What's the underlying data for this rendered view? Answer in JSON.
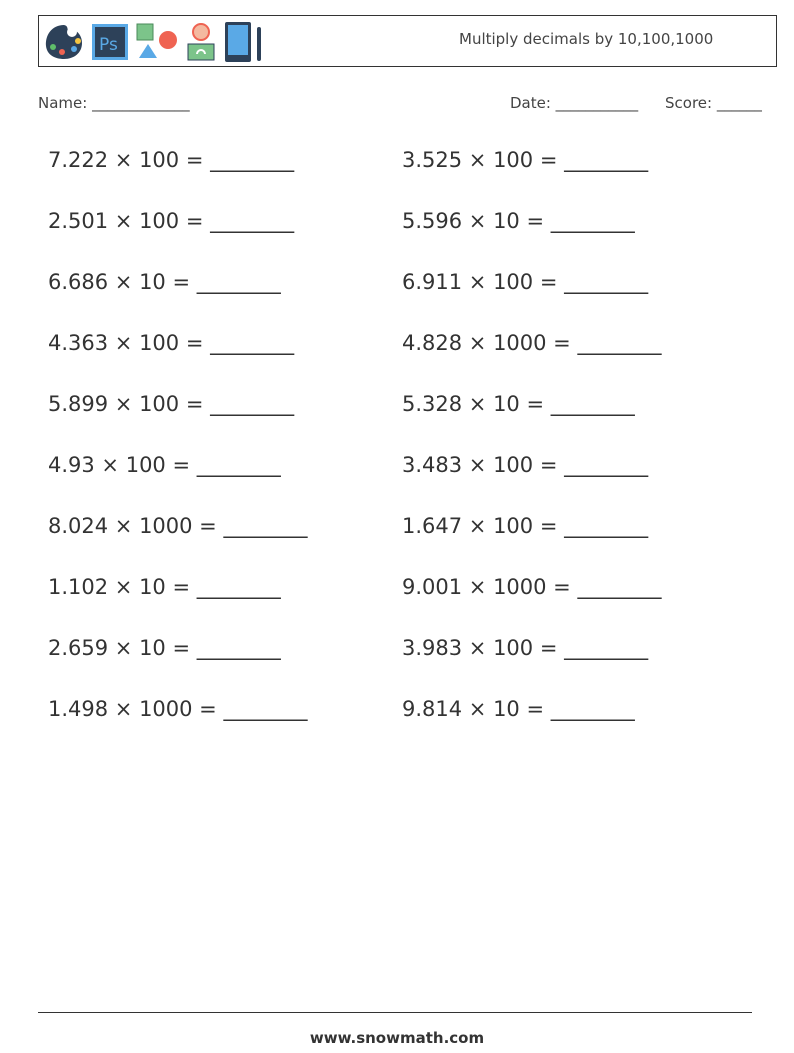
{
  "header": {
    "title": "Multiply decimals by 10,100,1000",
    "icons": [
      "palette-icon",
      "photoshop-icon",
      "shapes-icon",
      "person-laptop-icon",
      "tablet-pen-icon"
    ]
  },
  "fields": {
    "name": "Name: _____________",
    "date": "Date: ___________",
    "score": "Score: ______"
  },
  "problems": [
    "7.222 × 100 = ________",
    "3.525 × 100 = ________",
    "2.501 × 100 = ________",
    "5.596 × 10 = ________",
    "6.686 × 10 = ________",
    "6.911 × 100 = ________",
    "4.363 × 100 = ________",
    "4.828 × 1000 = ________",
    "5.899 × 100 = ________",
    "5.328 × 10 = ________",
    "4.93 × 100 = ________",
    "3.483 × 100 = ________",
    "8.024 × 1000 = ________",
    "1.647 × 100 = ________",
    "1.102 × 10 = ________",
    "9.001 × 1000 = ________",
    "2.659 × 10 = ________",
    "3.983 × 100 = ________",
    "1.498 × 1000 = ________",
    "9.814 × 10 = ________"
  ],
  "footer": {
    "url": "www.snowmath.com"
  }
}
